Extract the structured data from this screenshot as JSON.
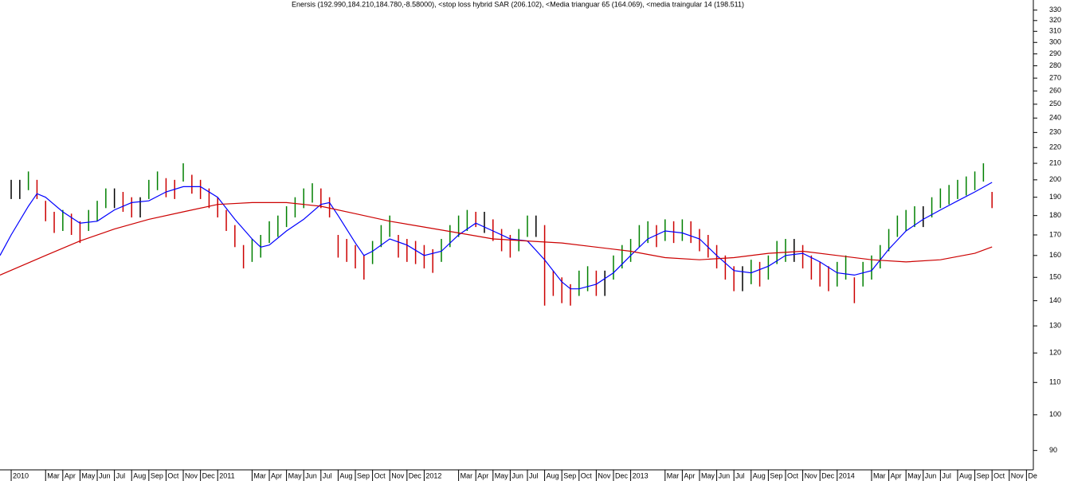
{
  "chart_data": {
    "type": "ohlc",
    "title": "Enersis (192.990,184.210,184.780,-8.58000), <stop loss hybrid SAR (206.102), <Media trianguar 65 (164.069), <media traingular 14 (198.511)",
    "log_y": true,
    "ylim": [
      85,
      340
    ],
    "yticks": [
      90,
      100,
      110,
      120,
      130,
      140,
      150,
      160,
      170,
      180,
      190,
      200,
      210,
      220,
      230,
      240,
      250,
      260,
      270,
      280,
      290,
      300,
      310,
      320,
      330
    ],
    "xlim": [
      -0.65,
      59.4
    ],
    "xticks": [
      {
        "value": 0,
        "label": "2010"
      },
      {
        "value": 2,
        "label": "Mar"
      },
      {
        "value": 3,
        "label": "Apr"
      },
      {
        "value": 4,
        "label": "May"
      },
      {
        "value": 5,
        "label": "Jun"
      },
      {
        "value": 6,
        "label": "Jul"
      },
      {
        "value": 7,
        "label": "Aug"
      },
      {
        "value": 8,
        "label": "Sep"
      },
      {
        "value": 9,
        "label": "Oct"
      },
      {
        "value": 10,
        "label": "Nov"
      },
      {
        "value": 11,
        "label": "Dec"
      },
      {
        "value": 12,
        "label": "2011"
      },
      {
        "value": 14,
        "label": "Mar"
      },
      {
        "value": 15,
        "label": "Apr"
      },
      {
        "value": 16,
        "label": "May"
      },
      {
        "value": 17,
        "label": "Jun"
      },
      {
        "value": 18,
        "label": "Jul"
      },
      {
        "value": 19,
        "label": "Aug"
      },
      {
        "value": 20,
        "label": "Sep"
      },
      {
        "value": 21,
        "label": "Oct"
      },
      {
        "value": 22,
        "label": "Nov"
      },
      {
        "value": 23,
        "label": "Dec"
      },
      {
        "value": 24,
        "label": "2012"
      },
      {
        "value": 26,
        "label": "Mar"
      },
      {
        "value": 27,
        "label": "Apr"
      },
      {
        "value": 28,
        "label": "May"
      },
      {
        "value": 29,
        "label": "Jun"
      },
      {
        "value": 30,
        "label": "Jul"
      },
      {
        "value": 31,
        "label": "Aug"
      },
      {
        "value": 32,
        "label": "Sep"
      },
      {
        "value": 33,
        "label": "Oct"
      },
      {
        "value": 34,
        "label": "Nov"
      },
      {
        "value": 35,
        "label": "Dec"
      },
      {
        "value": 36,
        "label": "2013"
      },
      {
        "value": 38,
        "label": "Mar"
      },
      {
        "value": 39,
        "label": "Apr"
      },
      {
        "value": 40,
        "label": "May"
      },
      {
        "value": 41,
        "label": "Jun"
      },
      {
        "value": 42,
        "label": "Jul"
      },
      {
        "value": 43,
        "label": "Aug"
      },
      {
        "value": 44,
        "label": "Sep"
      },
      {
        "value": 45,
        "label": "Oct"
      },
      {
        "value": 46,
        "label": "Nov"
      },
      {
        "value": 47,
        "label": "Dec"
      },
      {
        "value": 48,
        "label": "2014"
      },
      {
        "value": 50,
        "label": "Mar"
      },
      {
        "value": 51,
        "label": "Apr"
      },
      {
        "value": 52,
        "label": "May"
      },
      {
        "value": 53,
        "label": "Jun"
      },
      {
        "value": 54,
        "label": "Jul"
      },
      {
        "value": 55,
        "label": "Aug"
      },
      {
        "value": 56,
        "label": "Sep"
      },
      {
        "value": 57,
        "label": "Oct"
      },
      {
        "value": 58,
        "label": "Nov"
      },
      {
        "value": 59,
        "label": "De"
      }
    ],
    "up_color": "#008000",
    "down_color": "#cc0000",
    "flat_color": "#000000",
    "bars": {
      "x": [
        0,
        0.5,
        1,
        1.5,
        2,
        2.5,
        3,
        3.5,
        4,
        4.5,
        5,
        5.5,
        6,
        6.5,
        7,
        7.5,
        8,
        8.5,
        9,
        9.5,
        10,
        10.5,
        11,
        11.5,
        12,
        12.5,
        13,
        13.5,
        14,
        14.5,
        15,
        15.5,
        16,
        16.5,
        17,
        17.5,
        18,
        18.5,
        19,
        19.5,
        20,
        20.5,
        21,
        21.5,
        22,
        22.5,
        23,
        23.5,
        24,
        24.5,
        25,
        25.5,
        26,
        26.5,
        27,
        27.5,
        28,
        28.5,
        29,
        29.5,
        30,
        30.5,
        31,
        31.5,
        32,
        32.5,
        33,
        33.5,
        34,
        34.5,
        35,
        35.5,
        36,
        36.5,
        37,
        37.5,
        38,
        38.5,
        39,
        39.5,
        40,
        40.5,
        41,
        41.5,
        42,
        42.5,
        43,
        43.5,
        44,
        44.5,
        45,
        45.5,
        46,
        46.5,
        47,
        47.5,
        48,
        48.5,
        49,
        49.5,
        50,
        50.5,
        51,
        51.5,
        52,
        52.5,
        53,
        53.5,
        54,
        54.5,
        55,
        55.5,
        56,
        56.5,
        57
      ],
      "high": [
        200,
        200,
        205,
        200,
        188,
        182,
        183,
        181,
        177,
        183,
        188,
        195,
        195,
        193,
        190,
        190,
        200,
        205,
        201,
        200,
        210,
        203,
        200,
        195,
        190,
        183,
        175,
        165,
        168,
        170,
        177,
        180,
        185,
        190,
        195,
        198,
        195,
        190,
        170,
        168,
        165,
        160,
        167,
        175,
        180,
        170,
        168,
        167,
        165,
        163,
        168,
        175,
        180,
        183,
        182,
        182,
        178,
        173,
        170,
        173,
        180,
        180,
        175,
        153,
        150,
        147,
        153,
        155,
        153,
        153,
        160,
        165,
        168,
        175,
        177,
        175,
        178,
        177,
        178,
        177,
        173,
        170,
        165,
        160,
        155,
        155,
        158,
        157,
        160,
        167,
        168,
        168,
        165,
        160,
        157,
        155,
        157,
        160,
        150,
        157,
        160,
        165,
        173,
        180,
        183,
        185,
        185,
        190,
        195,
        197,
        200,
        202,
        205,
        210,
        193
      ],
      "low": [
        189,
        189,
        194,
        189,
        177,
        171,
        172,
        170,
        166,
        172,
        177,
        184,
        184,
        182,
        179,
        179,
        189,
        194,
        190,
        189,
        199,
        192,
        189,
        184,
        179,
        172,
        164,
        154,
        157,
        159,
        166,
        169,
        174,
        179,
        184,
        187,
        184,
        179,
        159,
        157,
        154,
        149,
        156,
        164,
        169,
        159,
        157,
        156,
        154,
        152,
        157,
        164,
        169,
        172,
        174,
        171,
        167,
        162,
        159,
        162,
        169,
        169,
        138,
        142,
        139,
        138,
        142,
        144,
        142,
        142,
        149,
        154,
        157,
        164,
        166,
        164,
        167,
        166,
        167,
        166,
        162,
        159,
        154,
        149,
        144,
        144,
        147,
        146,
        149,
        156,
        157,
        157,
        154,
        149,
        146,
        144,
        146,
        149,
        139,
        146,
        149,
        154,
        162,
        169,
        172,
        174,
        174,
        179,
        184,
        186,
        189,
        191,
        194,
        199,
        184
      ]
    },
    "series": [
      {
        "color": "#0000ff",
        "x": [
          -0.65,
          0,
          1,
          1.5,
          2,
          3,
          4,
          5,
          6,
          7,
          8,
          9,
          10,
          11,
          12,
          13,
          14,
          14.5,
          15,
          16,
          17,
          18,
          18.5,
          19,
          20,
          20.5,
          21,
          22,
          23,
          24,
          25,
          26,
          27,
          28,
          29,
          30,
          31,
          32,
          32.5,
          33,
          34,
          35,
          36,
          37,
          38,
          39,
          40,
          41,
          42,
          43,
          44,
          45,
          46,
          47,
          48,
          49,
          50,
          51,
          52,
          53,
          54,
          55,
          56,
          57
        ],
        "values": [
          160,
          170,
          185,
          192,
          190,
          182,
          176,
          177,
          183,
          187,
          188,
          193,
          196,
          196,
          190,
          178,
          168,
          164,
          165,
          172,
          178,
          186,
          187,
          180,
          166,
          160,
          162,
          168,
          165,
          160,
          162,
          170,
          176,
          172,
          168,
          167,
          158,
          148,
          145,
          145,
          147,
          152,
          160,
          168,
          172,
          171,
          168,
          160,
          153,
          152,
          155,
          160,
          161,
          157,
          152,
          151,
          153,
          163,
          172,
          178,
          183,
          188,
          193,
          198.511
        ]
      },
      {
        "color": "#cc0000",
        "x": [
          -0.65,
          2,
          4,
          6,
          8,
          10,
          12,
          14,
          16,
          18,
          20,
          22,
          24,
          26,
          28,
          30,
          32,
          34,
          36,
          38,
          40,
          42,
          44,
          46,
          48,
          50,
          52,
          54,
          56,
          57
        ],
        "values": [
          151,
          160,
          167,
          173,
          178,
          182,
          186,
          187,
          187,
          185,
          181,
          177,
          174,
          171,
          168,
          167,
          166,
          164,
          162,
          159,
          158,
          159,
          161,
          162,
          160,
          158,
          157,
          158,
          161,
          164.069
        ]
      }
    ]
  }
}
